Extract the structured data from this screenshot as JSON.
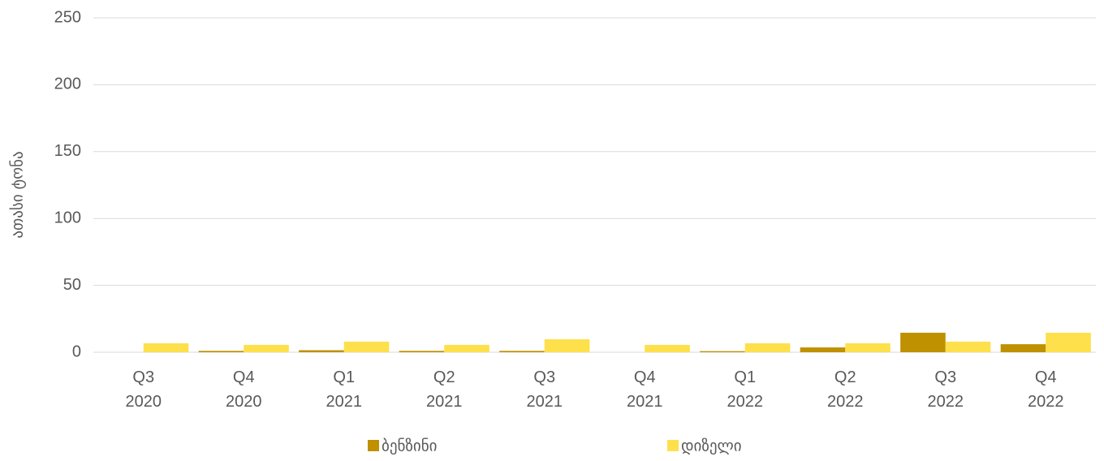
{
  "chart_data": {
    "type": "bar",
    "y_label": "ათასი ტონა",
    "categories": [
      "Q3 2020",
      "Q4 2020",
      "Q1 2021",
      "Q2 2021",
      "Q3 2021",
      "Q4 2021",
      "Q1 2022",
      "Q2 2022",
      "Q3 2022",
      "Q4 2022"
    ],
    "series": [
      {
        "name": "ბენზინი",
        "color": "#bf9000",
        "values": [
          0,
          1,
          1.5,
          1,
          1,
          0,
          0.8,
          3.6,
          14.6,
          6
        ]
      },
      {
        "name": "დიზელი",
        "color": "#fde04b",
        "values": [
          6.7,
          5.5,
          7.9,
          5.5,
          9.7,
          5.5,
          6.7,
          6.7,
          7.9,
          14.6
        ]
      }
    ],
    "ylim": [
      0,
      250
    ],
    "yticks": [
      0,
      50,
      100,
      150,
      200,
      250
    ],
    "grid": true,
    "legend": "bottom"
  }
}
